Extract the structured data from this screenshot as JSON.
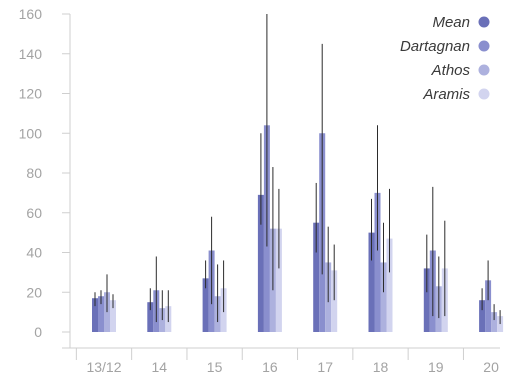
{
  "chart_data": {
    "type": "bar",
    "categories": [
      "13/12",
      "14",
      "15",
      "16",
      "17",
      "18",
      "19",
      "20"
    ],
    "ylim": [
      0,
      160
    ],
    "yticks": [
      0,
      20,
      40,
      60,
      80,
      100,
      120,
      140,
      160
    ],
    "grid": false,
    "legend_position": "top-right",
    "series": [
      {
        "name": "Mean",
        "color": "#6a70b8",
        "values": [
          17,
          15,
          27,
          69,
          55,
          50,
          32,
          16
        ],
        "err_low": [
          13,
          11,
          22,
          54,
          40,
          36,
          20,
          11
        ],
        "err_high": [
          20,
          22,
          36,
          100,
          75,
          67,
          49,
          22
        ]
      },
      {
        "name": "Dartagnan",
        "color": "#8a8fce",
        "values": [
          18,
          21,
          41,
          104,
          100,
          70,
          41,
          26
        ],
        "err_low": [
          14,
          5,
          14,
          43,
          29,
          41,
          8,
          16
        ],
        "err_high": [
          21,
          38,
          58,
          160,
          145,
          104,
          73,
          36
        ]
      },
      {
        "name": "Athos",
        "color": "#adb1de",
        "values": [
          20,
          12,
          18,
          52,
          35,
          35,
          23,
          10
        ],
        "err_low": [
          10,
          6,
          5,
          21,
          15,
          20,
          7,
          6
        ],
        "err_high": [
          29,
          21,
          34,
          83,
          53,
          55,
          38,
          14
        ]
      },
      {
        "name": "Aramis",
        "color": "#d2d4ef",
        "values": [
          16,
          13,
          22,
          52,
          31,
          47,
          32,
          8
        ],
        "err_low": [
          12,
          5,
          10,
          32,
          16,
          30,
          8,
          4
        ],
        "err_high": [
          19,
          21,
          36,
          72,
          44,
          72,
          56,
          11
        ]
      }
    ]
  }
}
